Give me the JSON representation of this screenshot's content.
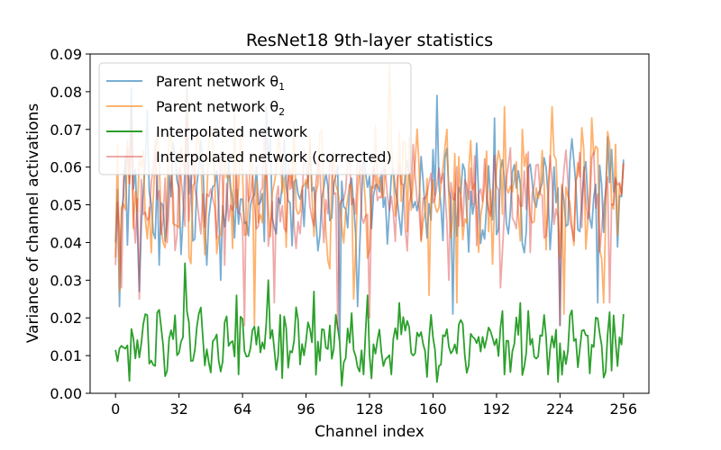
{
  "chart_data": {
    "type": "line",
    "title": "ResNet18 9th-layer statistics",
    "xlabel": "Channel index",
    "ylabel": "Variance of channel activations",
    "xlim": [
      -12.8,
      268.8
    ],
    "ylim": [
      0,
      0.09
    ],
    "xticks": [
      0,
      32,
      64,
      96,
      128,
      160,
      192,
      224,
      256
    ],
    "yticks": [
      0.0,
      0.01,
      0.02,
      0.03,
      0.04,
      0.05,
      0.06,
      0.07,
      0.08,
      0.09
    ],
    "ytick_labels": [
      "0.00",
      "0.01",
      "0.02",
      "0.03",
      "0.04",
      "0.05",
      "0.06",
      "0.07",
      "0.08",
      "0.09"
    ],
    "grid": false,
    "legend_position": "top-left",
    "series": [
      {
        "name": "Parent network θ",
        "name_sub": "1",
        "color": "#1f77b4",
        "opacity": 0.6,
        "spikes_x": [
          0,
          2,
          5,
          8,
          12,
          16,
          22,
          27,
          36,
          46,
          53,
          65,
          74,
          76,
          103,
          113,
          122,
          136,
          162,
          170,
          191,
          224,
          243,
          248
        ],
        "spikes_y": [
          0.04,
          0.023,
          0.063,
          0.081,
          0.027,
          0.075,
          0.034,
          0.058,
          0.082,
          0.034,
          0.03,
          0.045,
          0.053,
          0.076,
          0.042,
          0.014,
          0.023,
          0.052,
          0.079,
          0.021,
          0.073,
          0.018,
          0.024,
          0.068
        ],
        "base": 0.052,
        "amp": 0.0075,
        "phase": 0.0,
        "seed": 11,
        "end_values": [
          0.04,
          0.062
        ]
      },
      {
        "name": "Parent network θ",
        "name_sub": "2",
        "color": "#ff7f0e",
        "opacity": 0.6,
        "spikes_x": [
          2,
          8,
          24,
          36,
          60,
          70,
          82,
          98,
          108,
          120,
          138,
          143,
          148,
          158,
          167,
          172,
          196,
          205,
          220,
          226,
          240,
          246,
          252
        ],
        "spikes_y": [
          0.027,
          0.07,
          0.04,
          0.08,
          0.074,
          0.018,
          0.068,
          0.068,
          0.033,
          0.025,
          0.087,
          0.069,
          0.068,
          0.026,
          0.07,
          0.024,
          0.076,
          0.07,
          0.076,
          0.021,
          0.073,
          0.024,
          0.066
        ],
        "base": 0.053,
        "amp": 0.009,
        "phase": 1.7,
        "seed": 29,
        "end_values": [
          0.036,
          0.061
        ]
      },
      {
        "name": "Interpolated network",
        "color": "#2ca02c",
        "opacity": 1.0,
        "spikes_x": [
          1,
          7,
          15,
          35,
          48,
          61,
          62,
          77,
          84,
          100,
          108,
          114,
          125,
          127,
          139,
          143,
          162,
          196,
          204,
          218,
          223,
          230,
          250
        ],
        "spikes_y": [
          0.0085,
          0.0033,
          0.021,
          0.0345,
          0.0055,
          0.026,
          0.005,
          0.03,
          0.004,
          0.027,
          0.018,
          0.002,
          0.005,
          0.026,
          0.005,
          0.024,
          0.003,
          0.005,
          0.024,
          0.005,
          0.003,
          0.022,
          0.006
        ],
        "base": 0.0135,
        "amp": 0.0045,
        "phase": 0.4,
        "seed": 47,
        "end_values": [
          0.0115,
          0.021
        ]
      },
      {
        "name": "Interpolated network (corrected)",
        "color": "#d62728",
        "opacity": 0.4,
        "spikes_x": [
          0,
          3,
          8,
          12,
          20,
          26,
          36,
          55,
          65,
          75,
          80,
          95,
          112,
          118,
          128,
          150,
          168,
          181,
          194,
          208,
          224,
          236,
          249
        ],
        "spikes_y": [
          0.036,
          0.028,
          0.075,
          0.025,
          0.067,
          0.04,
          0.072,
          0.034,
          0.018,
          0.07,
          0.024,
          0.065,
          0.017,
          0.062,
          0.02,
          0.066,
          0.03,
          0.063,
          0.028,
          0.064,
          0.018,
          0.06,
          0.024
        ],
        "base": 0.0515,
        "amp": 0.007,
        "phase": 2.9,
        "seed": 71,
        "end_values": [
          0.034,
          0.061
        ]
      }
    ]
  }
}
